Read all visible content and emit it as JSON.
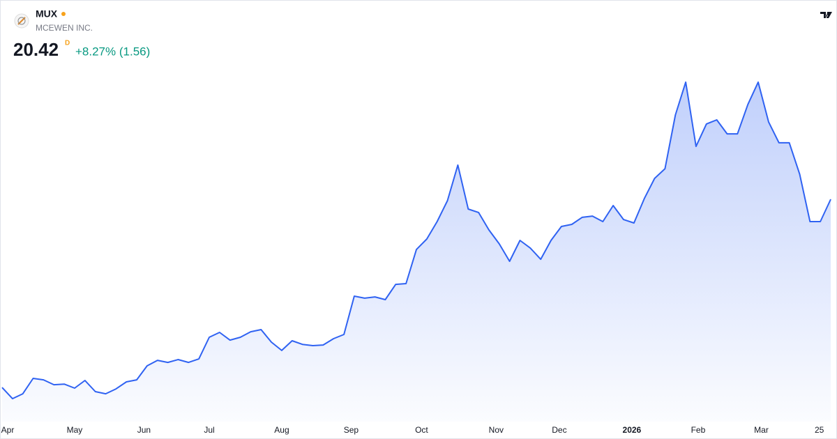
{
  "chart_data": {
    "type": "area",
    "symbol": "MUX",
    "name": "MCEWEN INC.",
    "price": 20.42,
    "interval": "D",
    "change": "+8.27% (1.56)",
    "color": "#2f62f2",
    "values": [
      8.43,
      7.72,
      8.03,
      9.01,
      8.92,
      8.61,
      8.65,
      8.39,
      8.88,
      8.17,
      8.03,
      8.34,
      8.79,
      8.92,
      9.81,
      10.16,
      10.03,
      10.21,
      10.03,
      10.25,
      11.63,
      11.94,
      11.45,
      11.63,
      11.98,
      12.12,
      11.32,
      10.79,
      11.41,
      11.18,
      11.1,
      11.14,
      11.54,
      11.81,
      14.25,
      14.12,
      14.2,
      14.03,
      15.0,
      15.05,
      17.22,
      17.89,
      19.0,
      20.33,
      22.6,
      19.8,
      19.58,
      18.47,
      17.58,
      16.47,
      17.8,
      17.31,
      16.6,
      17.8,
      18.69,
      18.82,
      19.27,
      19.35,
      19.0,
      20.02,
      19.13,
      18.91,
      20.46,
      21.75,
      22.37,
      25.79,
      27.88,
      23.79,
      25.22,
      25.48,
      24.59,
      24.59,
      26.46,
      27.88,
      25.35,
      24.02,
      24.02,
      22.02,
      19.0,
      19.0,
      20.42
    ],
    "ylim": [
      6.26,
      29.12
    ],
    "xticks": [
      {
        "value": 0.54,
        "label": "Apr"
      },
      {
        "value": 7.0,
        "label": "May"
      },
      {
        "value": 13.7,
        "label": "Jun"
      },
      {
        "value": 20.0,
        "label": "Jul"
      },
      {
        "value": 27.0,
        "label": "Aug"
      },
      {
        "value": 33.7,
        "label": "Sep"
      },
      {
        "value": 40.5,
        "label": "Oct"
      },
      {
        "value": 47.7,
        "label": "Nov"
      },
      {
        "value": 53.8,
        "label": "Dec"
      },
      {
        "value": 60.8,
        "label": "2026"
      },
      {
        "value": 67.2,
        "label": "Feb"
      },
      {
        "value": 73.3,
        "label": "Mar"
      },
      {
        "value": 78.9,
        "label": "25"
      }
    ]
  }
}
